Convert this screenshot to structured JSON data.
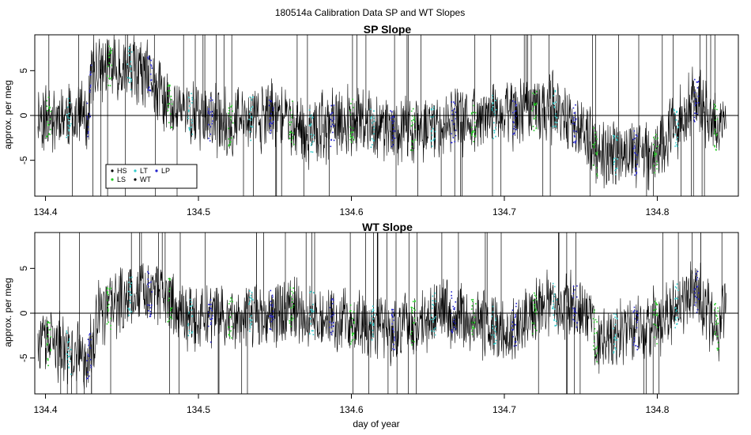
{
  "figure_title": "180514a   Calibration Data SP and WT Slopes",
  "colors": {
    "series_line": "#000000",
    "HS": "#000000",
    "LS": "#22cc22",
    "LT": "#33cccc",
    "WT": "#000000",
    "LP": "#2222cc",
    "zero_line": "#000000"
  },
  "chart_data": [
    {
      "type": "line",
      "title": "SP Slope",
      "xlabel": "",
      "ylabel": "approx. per meg",
      "xlim": [
        134.393,
        134.853
      ],
      "ylim": [
        -9,
        9
      ],
      "xticks": [
        134.4,
        134.5,
        134.6,
        134.7,
        134.8
      ],
      "xtick_labels": [
        "134.4",
        "134.5",
        "134.6",
        "134.7",
        "134.8"
      ],
      "yticks": [
        -5,
        0,
        5
      ],
      "ytick_labels": [
        "-5",
        "0",
        "5"
      ],
      "reference_line_y": 0,
      "series": [
        {
          "name": "HS",
          "marker": "point"
        },
        {
          "name": "LS",
          "marker": "point"
        },
        {
          "name": "LT",
          "marker": "point"
        },
        {
          "name": "WT",
          "marker": "point"
        },
        {
          "name": "LP",
          "marker": "point"
        }
      ],
      "trend": {
        "x": [
          134.395,
          134.41,
          134.428,
          134.43,
          134.45,
          134.47,
          134.48,
          134.5,
          134.52,
          134.55,
          134.57,
          134.6,
          134.63,
          134.66,
          134.7,
          134.73,
          134.755,
          134.76,
          134.8,
          134.825,
          134.84,
          134.845
        ],
        "y": [
          0,
          0,
          0,
          5,
          5.5,
          4,
          1,
          0,
          -1,
          0.5,
          -2,
          -0.5,
          -2,
          -1,
          0,
          1,
          -2.5,
          -4.5,
          -4,
          2,
          -2,
          0
        ]
      },
      "legend": {
        "position": "bottom-left",
        "entries": [
          "HS",
          "LT",
          "LP",
          "LS",
          "WT"
        ]
      }
    },
    {
      "type": "line",
      "title": "WT Slope",
      "xlabel": "day of year",
      "ylabel": "approx. per meg",
      "xlim": [
        134.393,
        134.853
      ],
      "ylim": [
        -9,
        9
      ],
      "xticks": [
        134.4,
        134.5,
        134.6,
        134.7,
        134.8
      ],
      "xtick_labels": [
        "134.4",
        "134.5",
        "134.6",
        "134.7",
        "134.8"
      ],
      "yticks": [
        -5,
        0,
        5
      ],
      "ytick_labels": [
        "-5",
        "0",
        "5"
      ],
      "reference_line_y": 0,
      "series": [
        {
          "name": "HS",
          "marker": "point"
        },
        {
          "name": "LS",
          "marker": "point"
        },
        {
          "name": "LT",
          "marker": "point"
        },
        {
          "name": "WT",
          "marker": "point"
        },
        {
          "name": "LP",
          "marker": "point"
        }
      ],
      "trend": {
        "x": [
          134.395,
          134.41,
          134.428,
          134.435,
          134.46,
          134.48,
          134.5,
          134.53,
          134.56,
          134.6,
          134.63,
          134.66,
          134.7,
          134.73,
          134.755,
          134.76,
          134.8,
          134.825,
          134.84,
          134.845
        ],
        "y": [
          -3,
          -4,
          -5,
          0,
          2.5,
          1.5,
          -1,
          0,
          0.5,
          -1,
          -2,
          0.5,
          -2,
          1,
          0.5,
          -3,
          -1,
          2.5,
          -2,
          1
        ]
      }
    }
  ]
}
